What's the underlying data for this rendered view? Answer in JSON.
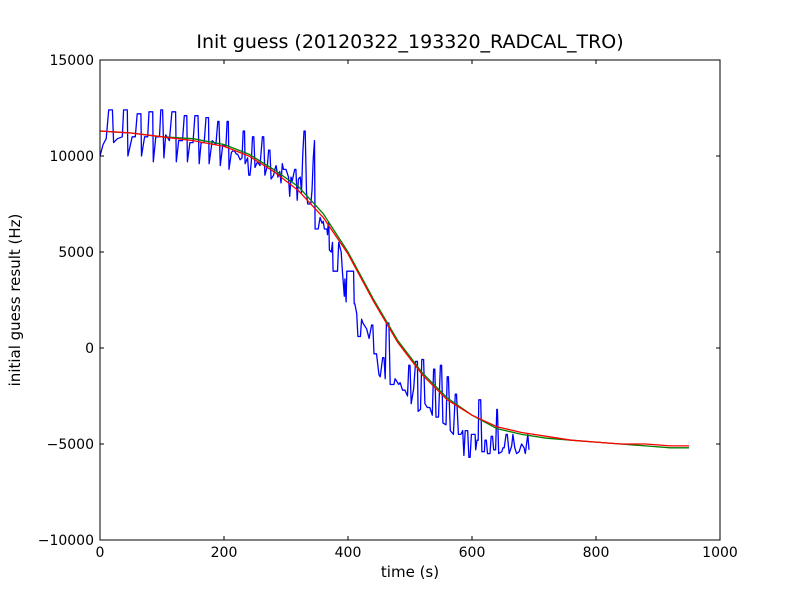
{
  "chart_data": {
    "type": "line",
    "title": "Init guess (20120322_193320_RADCAL_TRO)",
    "xlabel": "time (s)",
    "ylabel": "initial guess result (Hz)",
    "xlim": [
      0,
      1000
    ],
    "ylim": [
      -10000,
      15000
    ],
    "xticks": [
      0,
      200,
      400,
      600,
      800,
      1000
    ],
    "xtick_labels": [
      "0",
      "200",
      "400",
      "600",
      "800",
      "1000"
    ],
    "yticks": [
      -10000,
      -5000,
      0,
      5000,
      10000,
      15000
    ],
    "ytick_labels": [
      "−10000",
      "−5000",
      "0",
      "5000",
      "10000",
      "15000"
    ],
    "grid": false,
    "series": [
      {
        "color": "#0000ff",
        "points": [
          [
            0,
            10000
          ],
          [
            5,
            10600
          ],
          [
            10,
            10900
          ],
          [
            14,
            12400
          ],
          [
            20,
            12400
          ],
          [
            22,
            10700
          ],
          [
            28,
            10900
          ],
          [
            36,
            11000
          ],
          [
            38,
            12400
          ],
          [
            44,
            12400
          ],
          [
            45,
            10000
          ],
          [
            52,
            11000
          ],
          [
            57,
            11000
          ],
          [
            60,
            12200
          ],
          [
            66,
            12200
          ],
          [
            67,
            10000
          ],
          [
            72,
            11000
          ],
          [
            77,
            11000
          ],
          [
            79,
            12300
          ],
          [
            85,
            12300
          ],
          [
            86,
            9700
          ],
          [
            90,
            11000
          ],
          [
            96,
            11000
          ],
          [
            98,
            12400
          ],
          [
            101,
            12400
          ],
          [
            103,
            9900
          ],
          [
            106,
            11100
          ],
          [
            112,
            10800
          ],
          [
            116,
            12300
          ],
          [
            122,
            12300
          ],
          [
            123,
            9700
          ],
          [
            127,
            10800
          ],
          [
            133,
            10800
          ],
          [
            136,
            12100
          ],
          [
            140,
            12100
          ],
          [
            141,
            9700
          ],
          [
            145,
            10700
          ],
          [
            150,
            10700
          ],
          [
            153,
            12100
          ],
          [
            158,
            12100
          ],
          [
            160,
            9600
          ],
          [
            163,
            10700
          ],
          [
            168,
            10700
          ],
          [
            171,
            12000
          ],
          [
            175,
            12000
          ],
          [
            176,
            9600
          ],
          [
            181,
            10800
          ],
          [
            187,
            10600
          ],
          [
            190,
            11800
          ],
          [
            192,
            11800
          ],
          [
            194,
            9500
          ],
          [
            198,
            10600
          ],
          [
            203,
            10500
          ],
          [
            205,
            11800
          ],
          [
            207,
            11800
          ],
          [
            208,
            9300
          ],
          [
            212,
            10200
          ],
          [
            216,
            10300
          ],
          [
            220,
            10100
          ],
          [
            222,
            10100
          ],
          [
            226,
            9800
          ],
          [
            229,
            9900
          ],
          [
            231,
            11300
          ],
          [
            233,
            11300
          ],
          [
            234,
            9600
          ],
          [
            238,
            9900
          ],
          [
            240,
            9000
          ],
          [
            242,
            9000
          ],
          [
            244,
            9700
          ],
          [
            246,
            11000
          ],
          [
            248,
            11000
          ],
          [
            250,
            9400
          ],
          [
            254,
            9700
          ],
          [
            258,
            9500
          ],
          [
            262,
            11000
          ],
          [
            264,
            11000
          ],
          [
            266,
            9000
          ],
          [
            270,
            9500
          ],
          [
            272,
            10300
          ],
          [
            274,
            10300
          ],
          [
            276,
            8800
          ],
          [
            280,
            9000
          ],
          [
            282,
            9300
          ],
          [
            284,
            9500
          ],
          [
            287,
            8900
          ],
          [
            290,
            9200
          ],
          [
            292,
            8600
          ],
          [
            294,
            9600
          ],
          [
            296,
            9300
          ],
          [
            300,
            9300
          ],
          [
            304,
            8900
          ],
          [
            306,
            7900
          ],
          [
            308,
            8900
          ],
          [
            310,
            8700
          ],
          [
            314,
            9300
          ],
          [
            316,
            9300
          ],
          [
            318,
            7700
          ],
          [
            320,
            8800
          ],
          [
            323,
            8900
          ],
          [
            325,
            8100
          ],
          [
            327,
            10000
          ],
          [
            329,
            11300
          ],
          [
            331,
            11300
          ],
          [
            333,
            8100
          ],
          [
            335,
            7500
          ],
          [
            340,
            7500
          ],
          [
            342,
            8200
          ],
          [
            344,
            9900
          ],
          [
            346,
            10800
          ],
          [
            347,
            6200
          ],
          [
            350,
            6200
          ],
          [
            352,
            6200
          ],
          [
            355,
            6800
          ],
          [
            358,
            6500
          ],
          [
            360,
            6600
          ],
          [
            362,
            6200
          ],
          [
            366,
            6200
          ],
          [
            367,
            5900
          ],
          [
            368,
            6500
          ],
          [
            369,
            6500
          ],
          [
            370,
            5100
          ],
          [
            373,
            5000
          ],
          [
            375,
            5500
          ],
          [
            376,
            4000
          ],
          [
            383,
            4000
          ],
          [
            385,
            5500
          ],
          [
            389,
            5000
          ],
          [
            391,
            4000
          ],
          [
            392,
            3600
          ],
          [
            394,
            2700
          ],
          [
            395,
            3600
          ],
          [
            397,
            2400
          ],
          [
            398,
            4000
          ],
          [
            409,
            4000
          ],
          [
            410,
            2300
          ],
          [
            411,
            2300
          ],
          [
            414,
            1800
          ],
          [
            416,
            600
          ],
          [
            420,
            600
          ],
          [
            422,
            1500
          ],
          [
            424,
            1300
          ],
          [
            430,
            1000
          ],
          [
            434,
            500
          ],
          [
            438,
            1200
          ],
          [
            440,
            1200
          ],
          [
            442,
            -300
          ],
          [
            446,
            -300
          ],
          [
            450,
            -1400
          ],
          [
            452,
            -1500
          ],
          [
            456,
            -500
          ],
          [
            458,
            -500
          ],
          [
            460,
            -1600
          ],
          [
            462,
            1300
          ],
          [
            466,
            1300
          ],
          [
            468,
            -1900
          ],
          [
            474,
            -1900
          ],
          [
            476,
            -1600
          ],
          [
            482,
            -1900
          ],
          [
            484,
            -1800
          ],
          [
            488,
            -2200
          ],
          [
            492,
            -2200
          ],
          [
            496,
            -2500
          ],
          [
            498,
            -900
          ],
          [
            500,
            -900
          ],
          [
            502,
            -2900
          ],
          [
            506,
            -2100
          ],
          [
            509,
            -700
          ],
          [
            512,
            -700
          ],
          [
            513,
            -3300
          ],
          [
            517,
            -3200
          ],
          [
            519,
            -600
          ],
          [
            522,
            -600
          ],
          [
            524,
            -2900
          ],
          [
            528,
            -3100
          ],
          [
            532,
            -3100
          ],
          [
            536,
            -3500
          ],
          [
            538,
            -1100
          ],
          [
            540,
            -1100
          ],
          [
            542,
            -3600
          ],
          [
            546,
            -3600
          ],
          [
            549,
            -900
          ],
          [
            551,
            -900
          ],
          [
            553,
            -3900
          ],
          [
            558,
            -4000
          ],
          [
            560,
            -1500
          ],
          [
            562,
            -1500
          ],
          [
            565,
            -4300
          ],
          [
            570,
            -4500
          ],
          [
            573,
            -2400
          ],
          [
            575,
            -2400
          ],
          [
            578,
            -4500
          ],
          [
            582,
            -4500
          ],
          [
            585,
            -4300
          ],
          [
            587,
            -5600
          ],
          [
            589,
            -4300
          ],
          [
            593,
            -4300
          ],
          [
            595,
            -5700
          ],
          [
            597,
            -5700
          ],
          [
            599,
            -4500
          ],
          [
            605,
            -4500
          ],
          [
            606,
            -5300
          ],
          [
            608,
            -4800
          ],
          [
            610,
            -4800
          ],
          [
            611,
            -2700
          ],
          [
            614,
            -2700
          ],
          [
            616,
            -5400
          ],
          [
            620,
            -5400
          ],
          [
            621,
            -4800
          ],
          [
            623,
            -4800
          ],
          [
            625,
            -5500
          ],
          [
            629,
            -5500
          ],
          [
            631,
            -4600
          ],
          [
            633,
            -4600
          ],
          [
            635,
            -5300
          ],
          [
            638,
            -5300
          ],
          [
            640,
            -3200
          ],
          [
            641,
            -3200
          ],
          [
            643,
            -5500
          ],
          [
            648,
            -5400
          ],
          [
            650,
            -5200
          ],
          [
            652,
            -5200
          ],
          [
            655,
            -4500
          ],
          [
            657,
            -4500
          ],
          [
            660,
            -5500
          ],
          [
            662,
            -5300
          ],
          [
            664,
            -5100
          ],
          [
            666,
            -4500
          ],
          [
            669,
            -5200
          ],
          [
            672,
            -5500
          ],
          [
            676,
            -5400
          ],
          [
            680,
            -5000
          ],
          [
            684,
            -5200
          ],
          [
            686,
            -5500
          ],
          [
            690,
            -4500
          ],
          [
            692,
            -5300
          ]
        ]
      },
      {
        "color": "#008000",
        "points": [
          [
            0,
            11300
          ],
          [
            50,
            11200
          ],
          [
            100,
            11000
          ],
          [
            150,
            10900
          ],
          [
            200,
            10600
          ],
          [
            240,
            10100
          ],
          [
            280,
            9300
          ],
          [
            320,
            8400
          ],
          [
            360,
            7000
          ],
          [
            400,
            5000
          ],
          [
            440,
            2600
          ],
          [
            480,
            400
          ],
          [
            520,
            -1300
          ],
          [
            560,
            -2600
          ],
          [
            600,
            -3500
          ],
          [
            640,
            -4200
          ],
          [
            680,
            -4500
          ],
          [
            720,
            -4700
          ],
          [
            760,
            -4800
          ],
          [
            800,
            -4900
          ],
          [
            840,
            -5000
          ],
          [
            880,
            -5100
          ],
          [
            920,
            -5200
          ],
          [
            950,
            -5200
          ]
        ]
      },
      {
        "color": "#ff0000",
        "points": [
          [
            0,
            11300
          ],
          [
            50,
            11200
          ],
          [
            100,
            11000
          ],
          [
            150,
            10800
          ],
          [
            200,
            10500
          ],
          [
            240,
            10000
          ],
          [
            280,
            9200
          ],
          [
            320,
            8200
          ],
          [
            360,
            6800
          ],
          [
            400,
            4900
          ],
          [
            440,
            2500
          ],
          [
            480,
            300
          ],
          [
            520,
            -1400
          ],
          [
            560,
            -2700
          ],
          [
            600,
            -3500
          ],
          [
            640,
            -4100
          ],
          [
            680,
            -4400
          ],
          [
            720,
            -4600
          ],
          [
            760,
            -4800
          ],
          [
            800,
            -4900
          ],
          [
            840,
            -5000
          ],
          [
            880,
            -5000
          ],
          [
            920,
            -5100
          ],
          [
            950,
            -5100
          ]
        ]
      }
    ]
  }
}
